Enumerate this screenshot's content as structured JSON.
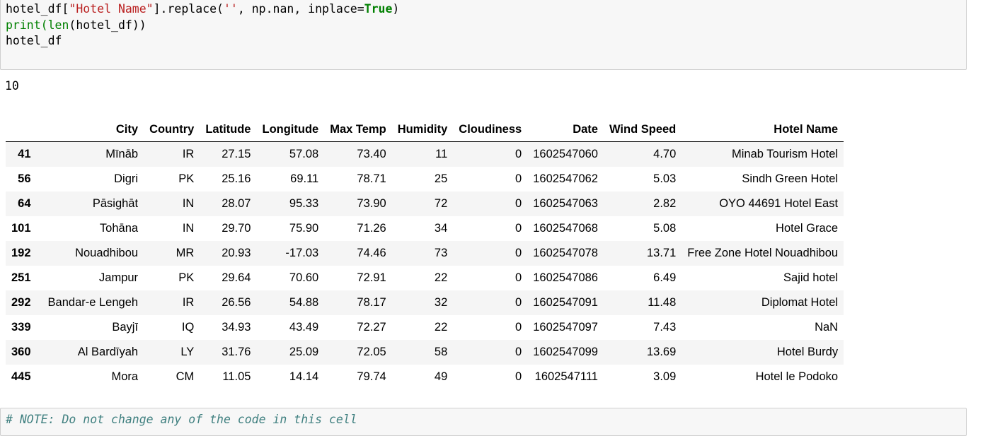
{
  "code_cell": {
    "line1": {
      "a": "hotel_df[",
      "b": "\"Hotel Name\"",
      "c": "].replace(",
      "d": "''",
      "e": ", np.nan, inplace=",
      "f": "True",
      "g": ")"
    },
    "line2": {
      "a": "print",
      "b": "(",
      "c": "len",
      "d": "(hotel_df))"
    },
    "line3": "hotel_df"
  },
  "stdout": "10",
  "table": {
    "columns": [
      "",
      "City",
      "Country",
      "Latitude",
      "Longitude",
      "Max Temp",
      "Humidity",
      "Cloudiness",
      "Date",
      "Wind Speed",
      "Hotel Name"
    ],
    "rows": [
      [
        "41",
        "Mīnāb",
        "IR",
        "27.15",
        "57.08",
        "73.40",
        "11",
        "0",
        "1602547060",
        "4.70",
        "Minab Tourism Hotel"
      ],
      [
        "56",
        "Digri",
        "PK",
        "25.16",
        "69.11",
        "78.71",
        "25",
        "0",
        "1602547062",
        "5.03",
        "Sindh Green Hotel"
      ],
      [
        "64",
        "Pāsighāt",
        "IN",
        "28.07",
        "95.33",
        "73.90",
        "72",
        "0",
        "1602547063",
        "2.82",
        "OYO 44691 Hotel East"
      ],
      [
        "101",
        "Tohāna",
        "IN",
        "29.70",
        "75.90",
        "71.26",
        "34",
        "0",
        "1602547068",
        "5.08",
        "Hotel Grace"
      ],
      [
        "192",
        "Nouadhibou",
        "MR",
        "20.93",
        "-17.03",
        "74.46",
        "73",
        "0",
        "1602547078",
        "13.71",
        "Free Zone Hotel Nouadhibou"
      ],
      [
        "251",
        "Jampur",
        "PK",
        "29.64",
        "70.60",
        "72.91",
        "22",
        "0",
        "1602547086",
        "6.49",
        "Sajid hotel"
      ],
      [
        "292",
        "Bandar-e Lengeh",
        "IR",
        "26.56",
        "54.88",
        "78.17",
        "32",
        "0",
        "1602547091",
        "11.48",
        "Diplomat Hotel"
      ],
      [
        "339",
        "Bayjī",
        "IQ",
        "34.93",
        "43.49",
        "72.27",
        "22",
        "0",
        "1602547097",
        "7.43",
        "NaN"
      ],
      [
        "360",
        "Al Bardīyah",
        "LY",
        "31.76",
        "25.09",
        "72.05",
        "58",
        "0",
        "1602547099",
        "13.69",
        "Hotel Burdy"
      ],
      [
        "445",
        "Mora",
        "CM",
        "11.05",
        "14.14",
        "79.74",
        "49",
        "0",
        "1602547111",
        "3.09",
        "Hotel le Podoko"
      ]
    ]
  },
  "next_cell": {
    "comment": "# NOTE: Do not change any of the code in this cell"
  }
}
